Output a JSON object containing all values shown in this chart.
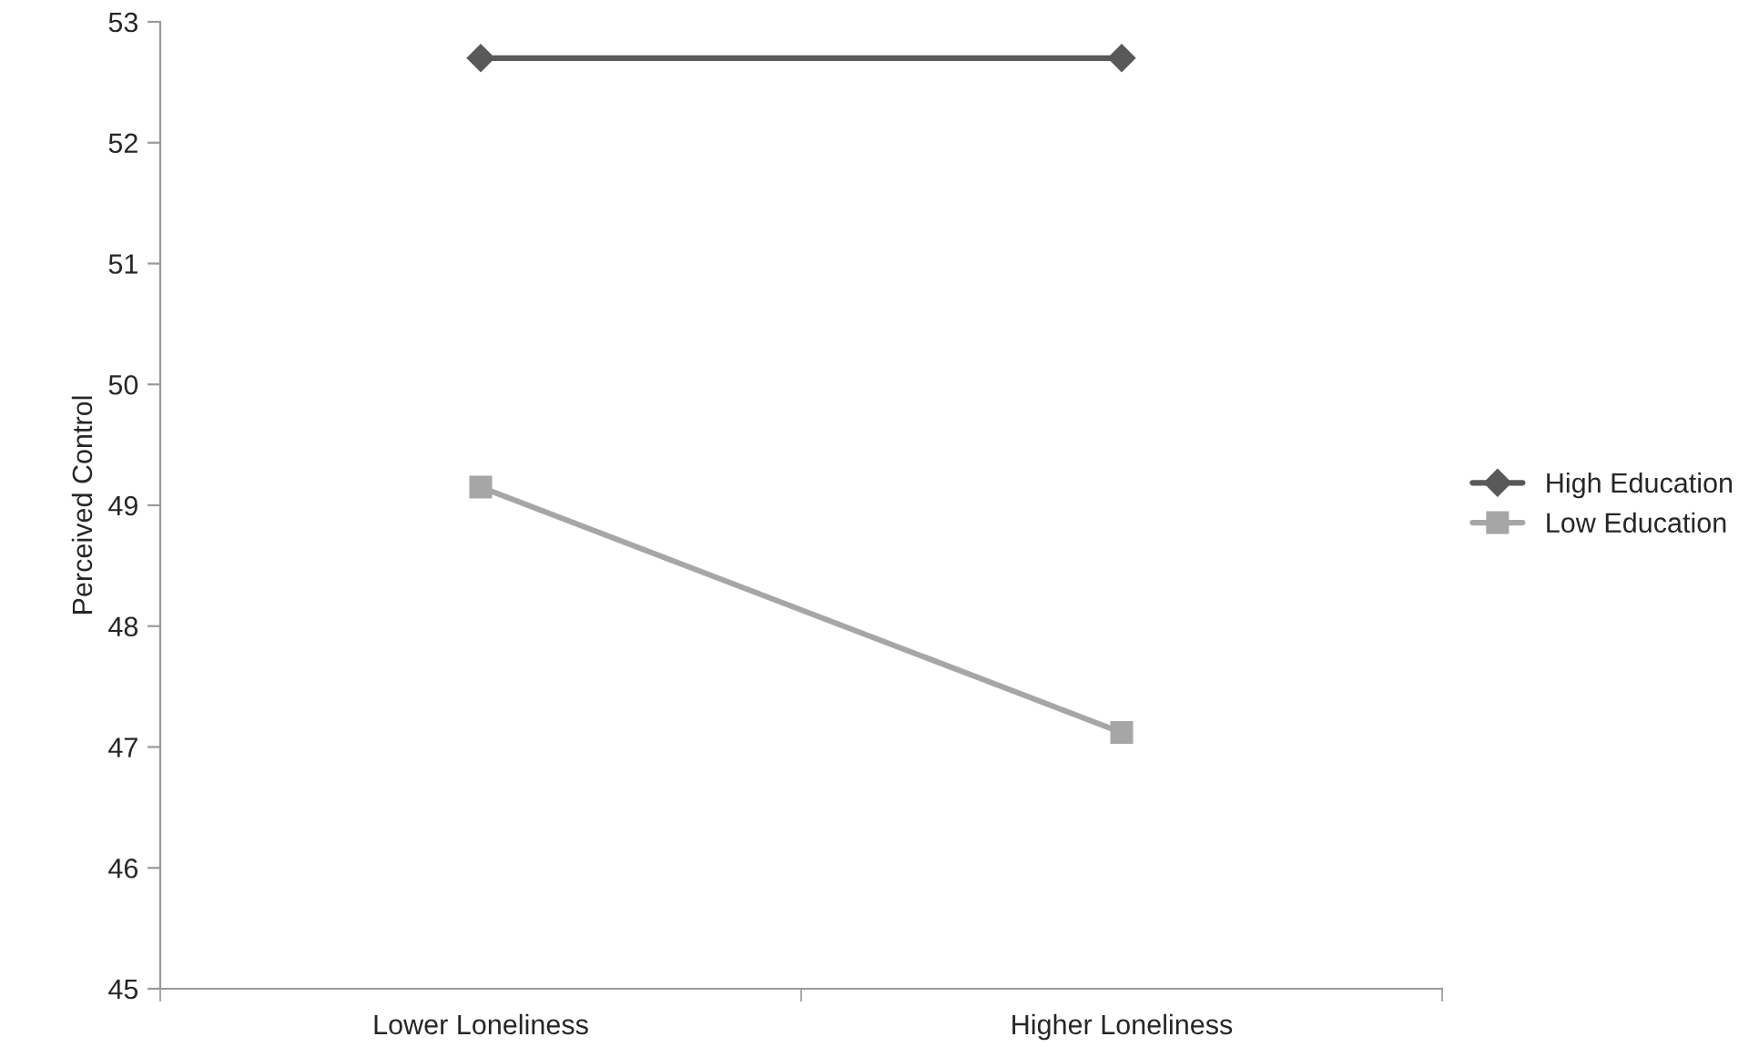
{
  "chart_data": {
    "type": "line",
    "ylabel": "Perceived Control",
    "categories": [
      "Lower Loneliness",
      "Higher Loneliness"
    ],
    "series": [
      {
        "name": "High Education",
        "color": "#595959",
        "values": [
          52.7,
          52.7
        ],
        "marker": "diamond"
      },
      {
        "name": "Low Education",
        "color": "#a6a6a6",
        "values": [
          49.15,
          47.12
        ],
        "marker": "square"
      }
    ],
    "ylim": [
      45,
      53
    ],
    "yticks": [
      45,
      46,
      47,
      48,
      49,
      50,
      51,
      52,
      53
    ],
    "grid": false,
    "legend": "right",
    "line_style": "solid"
  }
}
